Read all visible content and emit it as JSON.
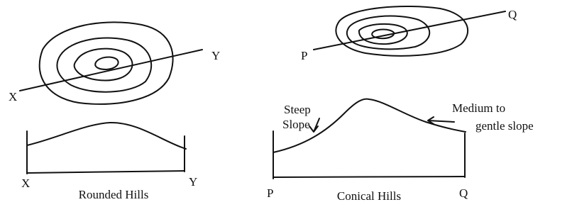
{
  "diagrams": [
    {
      "title": "Rounded Hills",
      "line_start": "X",
      "line_end": "Y",
      "profile_start": "X",
      "profile_end": "Y"
    },
    {
      "title": "Conical Hills",
      "line_start": "P",
      "line_end": "Q",
      "profile_start": "P",
      "profile_end": "Q",
      "annotations": [
        [
          "Steep",
          "Slope"
        ],
        [
          "Medium to",
          "gentle slope"
        ]
      ]
    }
  ]
}
